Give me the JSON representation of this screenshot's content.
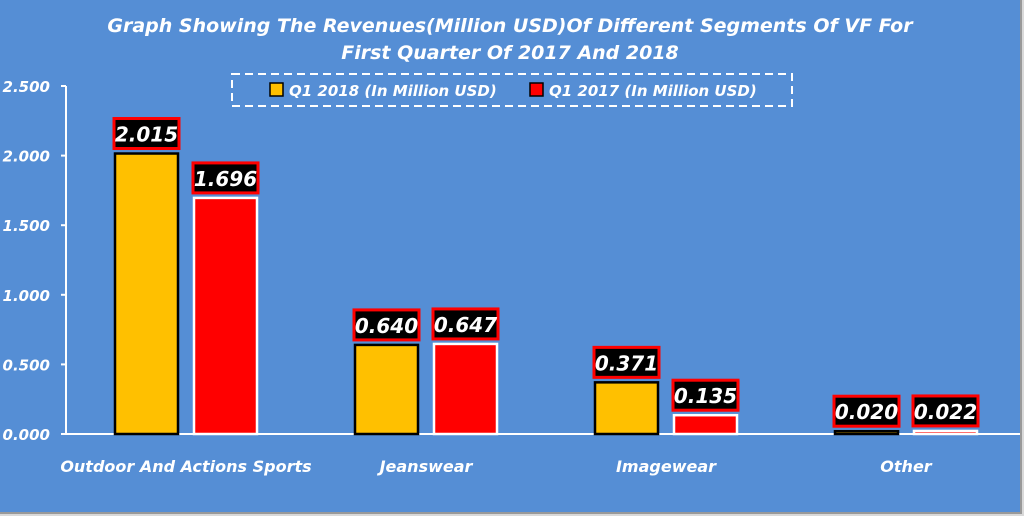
{
  "chart_data": {
    "type": "bar",
    "title_lines": [
      "Graph Showing The Revenues(Million USD)Of Different Segments Of VF For",
      "First Quarter Of 2017 And 2018"
    ],
    "categories": [
      "Outdoor And Actions Sports",
      "Jeanswear",
      "Imagewear",
      "Other"
    ],
    "series": [
      {
        "name": "Q1 2018 (In Million USD)",
        "color": "#ffc000",
        "border": "#000000",
        "values": [
          2.015,
          0.64,
          0.371,
          0.02
        ],
        "labels": [
          "2.015",
          "0.640",
          "0.371",
          "0.020"
        ]
      },
      {
        "name": "Q1 2017 (In Million USD)",
        "color": "#ff0000",
        "border": "#ffffff",
        "values": [
          1.696,
          0.647,
          0.135,
          0.022
        ],
        "labels": [
          "1.696",
          "0.647",
          "0.135",
          "0.022"
        ]
      }
    ],
    "yticks": [
      "0.000",
      "0.500",
      "1.000",
      "1.500",
      "2.000",
      "2.500"
    ],
    "ytick_values": [
      0,
      0.5,
      1,
      1.5,
      2,
      2.5
    ],
    "ylim": [
      0,
      2.5
    ],
    "legend_position": "top-center",
    "grid": false
  }
}
